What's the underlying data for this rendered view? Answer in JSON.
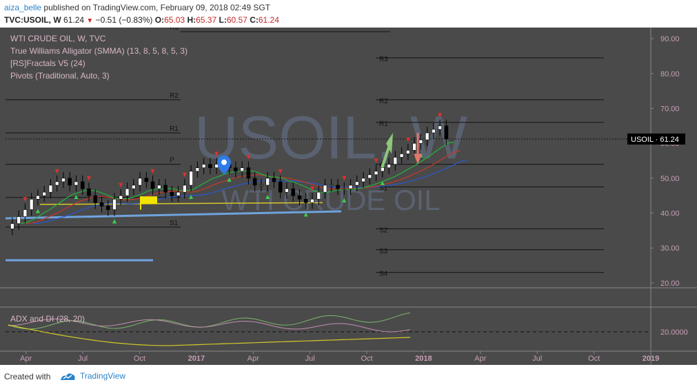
{
  "header": {
    "author": "aiza_belle",
    "published_text": "published on TradingView.com, February 09, 2018 02:49 SGT",
    "symbol_line": "TVC:USOIL, W",
    "last": "61.24",
    "change": "−0.51 (−0.83%)",
    "open_label": "O:",
    "open": "65.03",
    "high_label": "H:",
    "high": "65.37",
    "low_label": "L:",
    "low": "60.57",
    "close_label": "C:",
    "close": "61.24"
  },
  "legend": {
    "title": "WTI CRUDE OIL, W, TVC",
    "indicator_1": "True Williams Alligator (SMMA) (13, 8, 5, 8, 5, 3)",
    "indicator_2": "[RS]Fractals V5 (24)",
    "indicator_3": "Pivots (Traditional, Auto, 3)"
  },
  "watermark": {
    "symbol": "USOIL, W",
    "name": "WTI CRUDE OIL"
  },
  "price_tag": {
    "symbol": "USOIL",
    "value": "61.24"
  },
  "adx_label": "ADX and DI (28, 20)",
  "adx_axis_value": "20.0000",
  "footer": {
    "created_with": "Created with",
    "brand": "TradingView"
  },
  "colors": {
    "background": "#4a4a4a",
    "pivot_lines": "#111111",
    "up_candle": "#ffffff",
    "down_candle": "#000000",
    "alligator_jaw": "#2b57c8",
    "alligator_teeth": "#c0392b",
    "alligator_lips": "#27ae3a",
    "trendline_blue": "#6fa3de",
    "trendline_yellow": "#d4c92a",
    "arrow_up": "#8ec77a",
    "arrow_down": "#e0796b",
    "marker": "#2e7be8",
    "adx_plus_di": "#7bb86a",
    "adx_minus_di": "#c48fb0",
    "adx_line": "#d4c92a",
    "axis_text": "#c8a0b8"
  },
  "chart_data": {
    "type": "candlestick",
    "title": "WTI CRUDE OIL, W, TVC",
    "x_ticks": [
      "Apr",
      "Jul",
      "Oct",
      "2017",
      "Apr",
      "Jul",
      "Oct",
      "2018",
      "Apr",
      "Jul",
      "Oct",
      "2019"
    ],
    "x_tick_positions": [
      2016.25,
      2016.5,
      2016.75,
      2017.0,
      2017.25,
      2017.5,
      2017.75,
      2018.0,
      2018.25,
      2018.5,
      2018.75,
      2019.0
    ],
    "xlim": [
      2016.16,
      2019.0
    ],
    "y_ticks": [
      "90.00",
      "80.00",
      "70.00",
      "60.00",
      "50.00",
      "40.00",
      "30.00",
      "20.00"
    ],
    "ylim": [
      19,
      92
    ],
    "close_series": [
      37,
      39,
      41,
      44,
      45,
      46,
      48,
      49,
      50,
      48,
      49,
      47,
      45,
      43,
      42,
      41,
      44,
      45,
      47,
      48,
      50,
      49,
      47,
      48,
      46,
      45,
      46,
      48,
      52,
      53,
      54,
      53,
      54,
      54,
      53,
      52,
      53,
      50,
      48,
      48,
      50,
      49,
      46,
      47,
      45,
      44,
      43,
      44,
      46,
      48,
      48,
      47,
      47,
      48,
      49,
      50,
      51,
      52,
      53,
      54,
      56,
      57,
      58,
      60,
      61,
      63,
      64,
      65,
      61.24
    ],
    "pivots_left": [
      {
        "label": "R3",
        "value": 92
      },
      {
        "label": "R2",
        "value": 72.5
      },
      {
        "label": "R1",
        "value": 63
      },
      {
        "label": "P",
        "value": 54
      },
      {
        "label": "S1",
        "value": 44.5
      },
      {
        "label": "S1",
        "value": 36
      }
    ],
    "pivots_right": [
      {
        "label": "R3",
        "value": 84.5
      },
      {
        "label": "R2",
        "value": 72.5
      },
      {
        "label": "R1",
        "value": 66
      },
      {
        "label": "P",
        "value": 54
      },
      {
        "label": "S1",
        "value": 47.5
      },
      {
        "label": "S2",
        "value": 35.5
      },
      {
        "label": "S3",
        "value": 29.5
      },
      {
        "label": "S4",
        "value": 23
      }
    ],
    "last_price": 61.24,
    "adx_panel": {
      "label": "ADX and DI (28, 20)",
      "level": 20.0
    }
  }
}
